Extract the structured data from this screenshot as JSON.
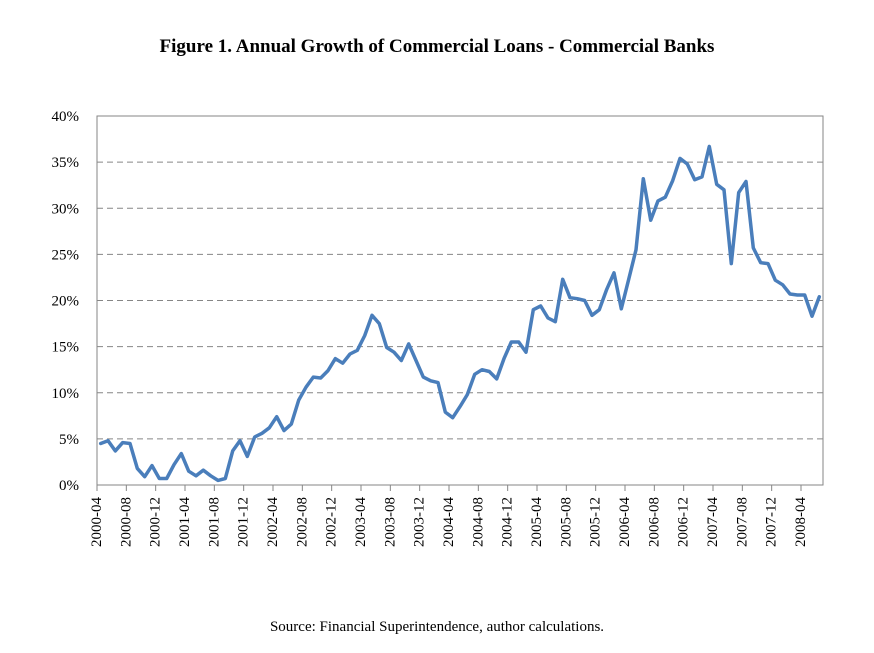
{
  "chart_data": {
    "type": "line",
    "title": "Figure 1. Annual Growth of Commercial Loans - Commercial Banks",
    "source": "Source: Financial Superintendence, author calculations.",
    "xlabel": "",
    "ylabel": "",
    "ylim": [
      0,
      40
    ],
    "y_ticks": [
      0,
      5,
      10,
      15,
      20,
      25,
      30,
      35,
      40
    ],
    "y_tick_labels": [
      "0%",
      "5%",
      "10%",
      "15%",
      "20%",
      "25%",
      "30%",
      "35%",
      "40%"
    ],
    "x_tick_labels": [
      "2000-04",
      "2000-08",
      "2000-12",
      "2001-04",
      "2001-08",
      "2001-12",
      "2002-04",
      "2002-08",
      "2002-12",
      "2003-04",
      "2003-08",
      "2003-12",
      "2004-04",
      "2004-08",
      "2004-12",
      "2005-04",
      "2005-08",
      "2005-12",
      "2006-04",
      "2006-08",
      "2006-12",
      "2007-04",
      "2007-08",
      "2007-12",
      "2008-04"
    ],
    "x_start": "2000-04",
    "x_frequency": "monthly",
    "grid": "horizontal-dashed",
    "legend": "none",
    "line_color": "#4a7ebb",
    "series": [
      {
        "name": "Annual growth of commercial loans",
        "values": [
          4.5,
          4.8,
          3.7,
          4.6,
          4.5,
          1.8,
          0.9,
          2.1,
          0.7,
          0.7,
          2.2,
          3.4,
          1.5,
          1.0,
          1.6,
          1.0,
          0.5,
          0.7,
          3.7,
          4.8,
          3.1,
          5.2,
          5.6,
          6.2,
          7.4,
          5.9,
          6.6,
          9.2,
          10.6,
          11.7,
          11.6,
          12.4,
          13.7,
          13.2,
          14.2,
          14.6,
          16.2,
          18.4,
          17.5,
          14.9,
          14.4,
          13.5,
          15.3,
          13.5,
          11.7,
          11.3,
          11.1,
          7.9,
          7.3,
          8.5,
          9.8,
          12.0,
          12.5,
          12.3,
          11.5,
          13.7,
          15.5,
          15.5,
          14.4,
          19.0,
          19.4,
          18.1,
          17.7,
          22.3,
          20.3,
          20.2,
          20.0,
          18.4,
          19.0,
          21.2,
          23.0,
          19.1,
          22.3,
          25.5,
          33.2,
          28.7,
          30.8,
          31.2,
          33.0,
          35.4,
          34.8,
          33.1,
          33.4,
          36.7,
          32.6,
          32.0,
          24.0,
          31.7,
          32.9,
          25.7,
          24.1,
          24.0,
          22.2,
          21.7,
          20.7,
          20.6,
          20.6,
          18.3,
          20.4
        ]
      }
    ]
  }
}
